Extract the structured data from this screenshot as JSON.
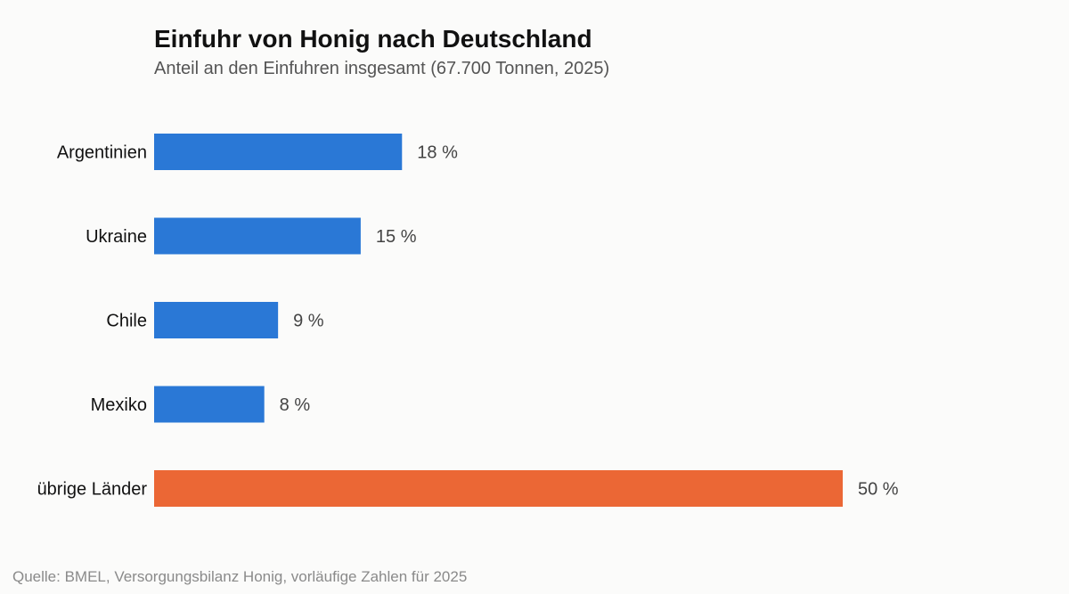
{
  "header": {
    "title": "Einfuhr von Honig nach Deutschland",
    "subtitle": "Anteil an den Einfuhren insgesamt (67.700 Tonnen, 2025)"
  },
  "footer": {
    "source": "Quelle: BMEL, Versorgungsbilanz Honig, vorläufige Zahlen für 2025"
  },
  "colors": {
    "primary_bar": "#2a78d6",
    "highlight_bar": "#eb6735",
    "category_label": "#111111",
    "value_label": "#444444"
  },
  "chart_data": {
    "type": "bar",
    "orientation": "horizontal",
    "title": "Einfuhr von Honig nach Deutschland",
    "subtitle": "Anteil an den Einfuhren insgesamt (67.700 Tonnen, 2025)",
    "categories": [
      "Argentinien",
      "Ukraine",
      "Chile",
      "Mexiko",
      "übrige Länder"
    ],
    "values": [
      18,
      15,
      9,
      8,
      50
    ],
    "value_labels": [
      "18 %",
      "15 %",
      "9 %",
      "8 %",
      "50 %"
    ],
    "highlighted": [
      "übrige Länder"
    ],
    "unit": "%",
    "xlim": [
      0,
      50
    ],
    "grid": false,
    "legend": "none"
  }
}
